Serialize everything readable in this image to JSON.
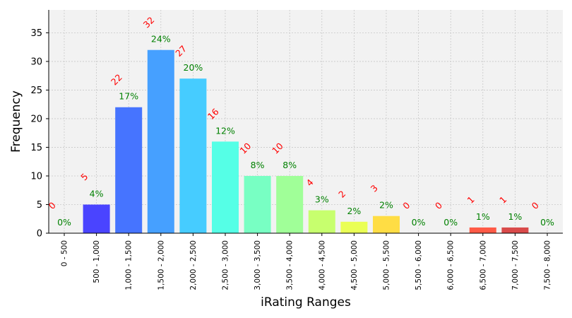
{
  "chart_data": {
    "type": "bar",
    "xlabel": "iRating Ranges",
    "ylabel": "Frequency",
    "ylim": [
      0,
      39
    ],
    "yticks": [
      0,
      5,
      10,
      15,
      20,
      25,
      30,
      35
    ],
    "grid": true,
    "categories": [
      "0 - 500",
      "500 - 1,000",
      "1,000 - 1,500",
      "1,500 - 2,000",
      "2,000 - 2,500",
      "2,500 - 3,000",
      "3,000 - 3,500",
      "3,500 - 4,000",
      "4,000 - 4,500",
      "4,500 - 5,000",
      "5,000 - 5,500",
      "5,500 - 6,000",
      "6,000 - 6,500",
      "6,500 - 7,000",
      "7,000 - 7,500",
      "7,500 - 8,000"
    ],
    "values": [
      0,
      5,
      22,
      32,
      27,
      16,
      10,
      10,
      4,
      2,
      3,
      0,
      0,
      1,
      1,
      0
    ],
    "count_labels": [
      "0",
      "5",
      "22",
      "32",
      "27",
      "16",
      "10",
      "10",
      "4",
      "2",
      "3",
      "0",
      "0",
      "1",
      "1",
      "0"
    ],
    "percent_labels": [
      "0%",
      "4%",
      "17%",
      "24%",
      "20%",
      "12%",
      "8%",
      "8%",
      "3%",
      "2%",
      "2%",
      "0%",
      "0%",
      "1%",
      "1%",
      "0%"
    ],
    "colors": [
      "#3030ff",
      "#4a44ff",
      "#4674ff",
      "#46a0ff",
      "#46ccff",
      "#55ffe6",
      "#78ffc3",
      "#a0ff98",
      "#c7ff6e",
      "#eaff55",
      "#ffdd44",
      "#ffb038",
      "#ff8c30",
      "#ff5a46",
      "#d94a4a",
      "#b03030"
    ],
    "count_label_color": "#ff0000",
    "percent_label_color": "#008000"
  }
}
